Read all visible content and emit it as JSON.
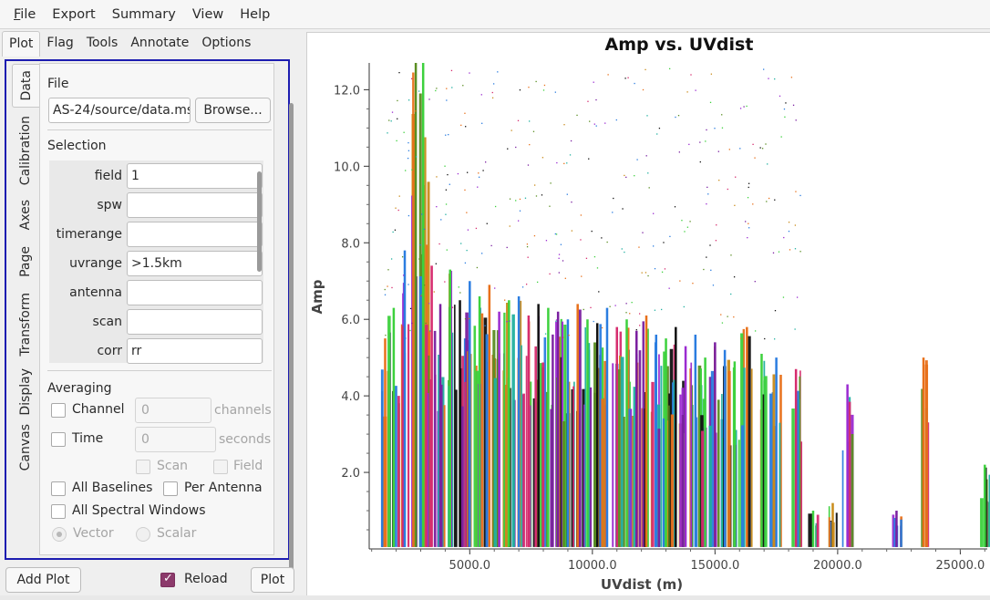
{
  "menubar": {
    "items": [
      "File",
      "Export",
      "Summary",
      "View",
      "Help"
    ]
  },
  "top_tabs": [
    "Plot",
    "Flag",
    "Tools",
    "Annotate",
    "Options"
  ],
  "vertical_tabs": [
    "Data",
    "Calibration",
    "Axes",
    "Page",
    "Transform",
    "Display",
    "Canvas"
  ],
  "data_tab": {
    "file": {
      "title": "File",
      "path_value": "AS-24/source/data.ms",
      "browse_label": "Browse..."
    },
    "selection": {
      "title": "Selection",
      "rows": [
        {
          "label": "field",
          "value": "1"
        },
        {
          "label": "spw",
          "value": ""
        },
        {
          "label": "timerange",
          "value": ""
        },
        {
          "label": "uvrange",
          "value": ">1.5km"
        },
        {
          "label": "antenna",
          "value": ""
        },
        {
          "label": "scan",
          "value": ""
        },
        {
          "label": "corr",
          "value": "rr"
        }
      ]
    },
    "averaging": {
      "title": "Averaging",
      "channel_label": "Channel",
      "channel_value": "0",
      "channel_unit": "channels",
      "time_label": "Time",
      "time_value": "0",
      "time_unit": "seconds",
      "scan_label": "Scan",
      "field_label": "Field",
      "all_baselines_label": "All Baselines",
      "per_antenna_label": "Per Antenna",
      "all_spw_label": "All Spectral Windows",
      "vector_label": "Vector",
      "scalar_label": "Scalar"
    }
  },
  "bottom": {
    "add_plot_label": "Add Plot",
    "reload_label": "Reload",
    "plot_label": "Plot"
  },
  "chart_data": {
    "type": "scatter",
    "title": "Amp vs. UVdist",
    "xlabel": "UVdist (m)",
    "ylabel": "Amp",
    "xlim": [
      900,
      26100
    ],
    "ylim": [
      0,
      12.7
    ],
    "x_ticks": [
      5000,
      10000,
      15000,
      20000,
      25000
    ],
    "x_tick_labels": [
      "5000.0",
      "10000.0",
      "15000.0",
      "20000.0",
      "25000.0"
    ],
    "y_ticks": [
      2,
      4,
      6,
      8,
      10,
      12
    ],
    "y_tick_labels": [
      "2.0",
      "4.0",
      "6.0",
      "8.0",
      "10.0",
      "12.0"
    ],
    "grid": false,
    "colors": [
      "#e8701a",
      "#2b7de0",
      "#3dd13d",
      "#7a1fa0",
      "#d62c6e",
      "#111111",
      "#9b2bd1",
      "#5a8e22",
      "#c98b1a",
      "#20b0a0"
    ],
    "bands": [
      {
        "x": 1550,
        "top": 5.5,
        "color": "#e8701a"
      },
      {
        "x": 1900,
        "top": 6.3,
        "color": "#3dd13d"
      },
      {
        "x": 2350,
        "top": 7.8,
        "color": "#2b7de0"
      },
      {
        "x": 2800,
        "top": 12.7,
        "color": "#5a8e22"
      },
      {
        "x": 3100,
        "top": 12.7,
        "color": "#3dd13d"
      },
      {
        "x": 3450,
        "top": 7.4,
        "color": "#d62c6e"
      },
      {
        "x": 3800,
        "top": 6.4,
        "color": "#7a1fa0"
      },
      {
        "x": 4200,
        "top": 7.3,
        "color": "#3dd13d"
      },
      {
        "x": 4600,
        "top": 6.5,
        "color": "#111111"
      },
      {
        "x": 5000,
        "top": 7.0,
        "color": "#2b7de0"
      },
      {
        "x": 5400,
        "top": 6.6,
        "color": "#3dd13d"
      },
      {
        "x": 5800,
        "top": 6.9,
        "color": "#e8701a"
      },
      {
        "x": 6200,
        "top": 6.2,
        "color": "#9b2bd1"
      },
      {
        "x": 6600,
        "top": 6.5,
        "color": "#3dd13d"
      },
      {
        "x": 7000,
        "top": 6.6,
        "color": "#2b7de0"
      },
      {
        "x": 7400,
        "top": 6.1,
        "color": "#d62c6e"
      },
      {
        "x": 7800,
        "top": 6.4,
        "color": "#111111"
      },
      {
        "x": 8200,
        "top": 6.3,
        "color": "#3dd13d"
      },
      {
        "x": 8600,
        "top": 6.2,
        "color": "#7a1fa0"
      },
      {
        "x": 9000,
        "top": 6.0,
        "color": "#2b7de0"
      },
      {
        "x": 9400,
        "top": 6.4,
        "color": "#e8701a"
      },
      {
        "x": 9800,
        "top": 6.0,
        "color": "#3dd13d"
      },
      {
        "x": 10200,
        "top": 5.9,
        "color": "#111111"
      },
      {
        "x": 10600,
        "top": 6.3,
        "color": "#2b7de0"
      },
      {
        "x": 11000,
        "top": 5.8,
        "color": "#d62c6e"
      },
      {
        "x": 11400,
        "top": 6.0,
        "color": "#3dd13d"
      },
      {
        "x": 11800,
        "top": 5.7,
        "color": "#7a1fa0"
      },
      {
        "x": 12200,
        "top": 6.1,
        "color": "#e8701a"
      },
      {
        "x": 12600,
        "top": 5.6,
        "color": "#2b7de0"
      },
      {
        "x": 13000,
        "top": 5.5,
        "color": "#3dd13d"
      },
      {
        "x": 13400,
        "top": 5.8,
        "color": "#111111"
      },
      {
        "x": 13800,
        "top": 5.3,
        "color": "#9b2bd1"
      },
      {
        "x": 14200,
        "top": 5.6,
        "color": "#2b7de0"
      },
      {
        "x": 14600,
        "top": 5.0,
        "color": "#3dd13d"
      },
      {
        "x": 15000,
        "top": 5.4,
        "color": "#7a1fa0"
      },
      {
        "x": 15400,
        "top": 5.2,
        "color": "#2b7de0"
      },
      {
        "x": 15800,
        "top": 4.9,
        "color": "#3dd13d"
      },
      {
        "x": 16300,
        "top": 5.8,
        "color": "#e8701a"
      },
      {
        "x": 16900,
        "top": 5.1,
        "color": "#3dd13d"
      },
      {
        "x": 17500,
        "top": 5.0,
        "color": "#2b7de0"
      },
      {
        "x": 18300,
        "top": 4.7,
        "color": "#d62c6e"
      },
      {
        "x": 19000,
        "top": 1.0,
        "color": "#3dd13d"
      },
      {
        "x": 19800,
        "top": 1.2,
        "color": "#c98b1a"
      },
      {
        "x": 20400,
        "top": 4.3,
        "color": "#9b2bd1"
      },
      {
        "x": 22400,
        "top": 1.0,
        "color": "#7a1fa0"
      },
      {
        "x": 23500,
        "top": 5.0,
        "color": "#e8701a"
      },
      {
        "x": 26000,
        "top": 2.2,
        "color": "#3dd13d"
      }
    ]
  }
}
